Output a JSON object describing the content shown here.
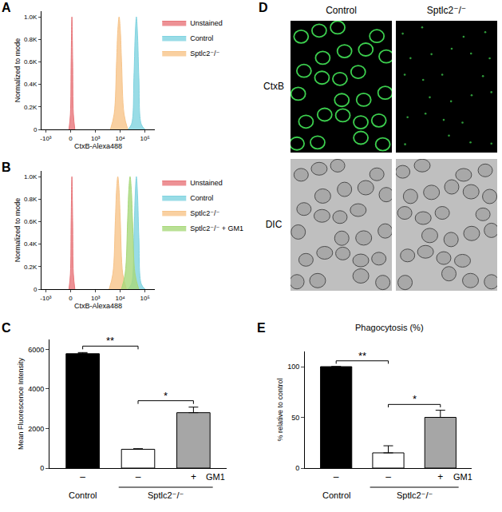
{
  "chart_data": [
    {
      "panel": "A",
      "type": "area",
      "x_label": "CtxB-Alexa488",
      "y_label": "Normalized to mode",
      "xlim": [
        -1500,
        250000
      ],
      "xticks": [
        {
          "value": -1000,
          "label": "-10³"
        },
        0,
        {
          "value": 1000,
          "label": "10³"
        },
        {
          "value": 10000,
          "label": "10⁴"
        },
        {
          "value": 100000,
          "label": "10⁵"
        }
      ],
      "ylim": [
        0,
        1050
      ],
      "yticks": [
        0,
        {
          "value": 200,
          "label": "0.2K"
        },
        {
          "value": 400,
          "label": "0.4K"
        },
        {
          "value": 600,
          "label": "0.6K"
        },
        {
          "value": 800,
          "label": "0.8K"
        },
        {
          "value": 1000,
          "label": "1.0K"
        }
      ],
      "legend": "right",
      "series": [
        {
          "name": "Unstained",
          "color": "#e8767a",
          "x": [
            -32,
            -5,
            9,
            23,
            37,
            51,
            80
          ],
          "values": [
            0,
            135,
            607,
            1000,
            607,
            135,
            0
          ]
        },
        {
          "name": "Control",
          "color": "#7fd3e0",
          "x": [
            20100,
            28400,
            35700,
            40100,
            45000,
            50500,
            56700,
            71300,
            100800
          ],
          "values": [
            0,
            44,
            458,
            823,
            1000,
            823,
            458,
            44,
            0
          ]
        },
        {
          "name": "Sptlc2⁻/⁻",
          "color": "#f7c48a",
          "x": [
            4020,
            5680,
            7150,
            8020,
            9000,
            10100,
            11300,
            14300,
            20200
          ],
          "values": [
            0,
            135,
            607,
            882,
            1000,
            882,
            607,
            135,
            0
          ]
        }
      ]
    },
    {
      "panel": "B",
      "type": "area",
      "x_label": "CtxB-Alexa488",
      "y_label": "Normalized to mode",
      "xlim": [
        -1500,
        250000
      ],
      "xticks": [
        {
          "value": -1000,
          "label": "-10³"
        },
        0,
        {
          "value": 1000,
          "label": "10³"
        },
        {
          "value": 10000,
          "label": "10⁴"
        },
        {
          "value": 100000,
          "label": "10⁵"
        }
      ],
      "ylim": [
        0,
        1050
      ],
      "yticks": [
        0,
        {
          "value": 200,
          "label": "0.2K"
        },
        {
          "value": 400,
          "label": "0.4K"
        },
        {
          "value": 600,
          "label": "0.6K"
        },
        {
          "value": 800,
          "label": "0.8K"
        },
        {
          "value": 1000,
          "label": "1.0K"
        }
      ],
      "legend": "right",
      "series": [
        {
          "name": "Unstained",
          "color": "#e8767a",
          "x": [
            -32,
            -5,
            9,
            23,
            37,
            51,
            80
          ],
          "values": [
            0,
            135,
            607,
            1000,
            607,
            135,
            0
          ]
        },
        {
          "name": "Control",
          "color": "#7fd3e0",
          "x": [
            20100,
            28400,
            35700,
            40100,
            45000,
            50500,
            56700,
            71300,
            100800
          ],
          "values": [
            0,
            44,
            458,
            823,
            1000,
            823,
            458,
            44,
            0
          ]
        },
        {
          "name": "Sptlc2⁻/⁻",
          "color": "#f7c48a",
          "x": [
            3570,
            5050,
            6350,
            7130,
            8000,
            8980,
            10100,
            12700,
            17900
          ],
          "values": [
            0,
            135,
            607,
            882,
            1000,
            882,
            607,
            135,
            0
          ]
        },
        {
          "name": "Sptlc2⁻/⁻ + GM1",
          "color": "#a8d87a",
          "x": [
            11200,
            15800,
            19900,
            22300,
            25000,
            28100,
            31500,
            39600,
            56000
          ],
          "values": [
            0,
            135,
            607,
            882,
            1000,
            882,
            607,
            135,
            0
          ]
        }
      ]
    },
    {
      "panel": "C",
      "type": "bar",
      "y_label": "Mean Fluorescence Intensity",
      "categories": [
        "–",
        "–",
        "+"
      ],
      "values": [
        5780,
        950,
        2800
      ],
      "errors": [
        60,
        30,
        280
      ],
      "colors": [
        "#000000",
        "#ffffff",
        "#a6a6a6"
      ],
      "ylim": [
        0,
        6500
      ],
      "yticks": [
        0,
        2000,
        4000,
        6000
      ],
      "row_label": "GM1",
      "group_labels": [
        "Control",
        "Sptlc2⁻/⁻",
        "Sptlc2⁻/⁻"
      ],
      "significance": [
        {
          "text": "**",
          "from": 0,
          "to": 1
        },
        {
          "text": "*",
          "from": 1,
          "to": 2
        }
      ]
    },
    {
      "panel": "E",
      "type": "bar",
      "title": "Phagocytosis (%)",
      "y_label": "% relative to control",
      "categories": [
        "–",
        "–",
        "+"
      ],
      "values": [
        100,
        15,
        50
      ],
      "errors": [
        0,
        7,
        7
      ],
      "colors": [
        "#000000",
        "#ffffff",
        "#a6a6a6"
      ],
      "ylim": [
        0,
        115
      ],
      "yticks": [
        0,
        50,
        100
      ],
      "row_label": "GM1",
      "group_labels": [
        "Control",
        "Sptlc2⁻/⁻",
        "Sptlc2⁻/⁻"
      ],
      "significance": [
        {
          "text": "**",
          "from": 0,
          "to": 1
        },
        {
          "text": "*",
          "from": 1,
          "to": 2
        }
      ]
    }
  ],
  "image_panel": {
    "panel": "D",
    "columns": [
      "Control",
      "Sptlc2⁻/⁻"
    ],
    "rows": [
      "CtxB",
      "DIC"
    ]
  }
}
